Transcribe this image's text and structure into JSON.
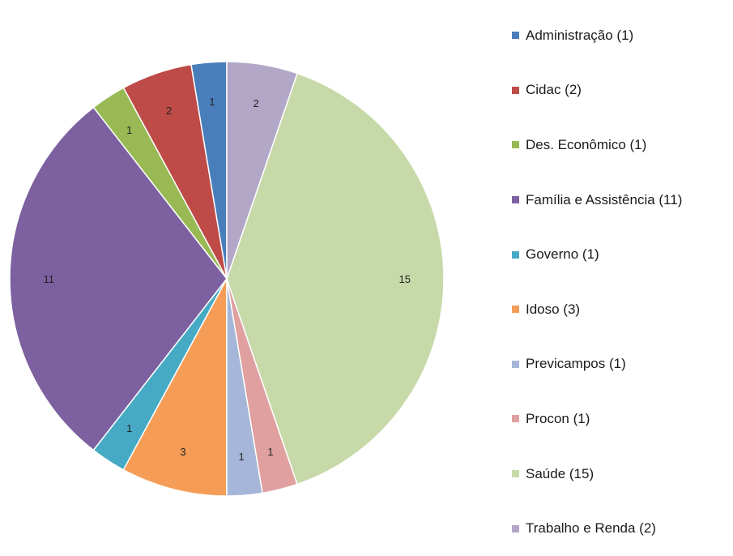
{
  "chart_data": {
    "type": "pie",
    "categories": [
      "Administração",
      "Cidac",
      "Des. Econômico",
      "Família e Assistência",
      "Governo",
      "Idoso",
      "Previcampos",
      "Procon",
      "Saúde",
      "Trabalho e Renda"
    ],
    "values": [
      1,
      2,
      1,
      11,
      1,
      3,
      1,
      1,
      15,
      2
    ],
    "data_labels": [
      "1",
      "2",
      "1",
      "11",
      "1",
      "3",
      "1",
      "1",
      "15",
      "2"
    ],
    "legend": [
      "Administração (1)",
      "Cidac (2)",
      "Des. Econômico (1)",
      "Família e Assistência (11)",
      "Governo (1)",
      "Idoso (3)",
      "Previcampos (1)",
      "Procon (1)",
      "Saúde (15)",
      "Trabalho e Renda (2)"
    ],
    "legend_placement": "right",
    "colors": [
      "#4A7EBB",
      "#BE4B48",
      "#98B954",
      "#7D60A0",
      "#46AAC5",
      "#F59D56",
      "#A5B6D8",
      "#E0A0A0",
      "#C7D9A8",
      "#B3A7C8"
    ],
    "title": "",
    "xlabel": "",
    "ylabel": ""
  }
}
